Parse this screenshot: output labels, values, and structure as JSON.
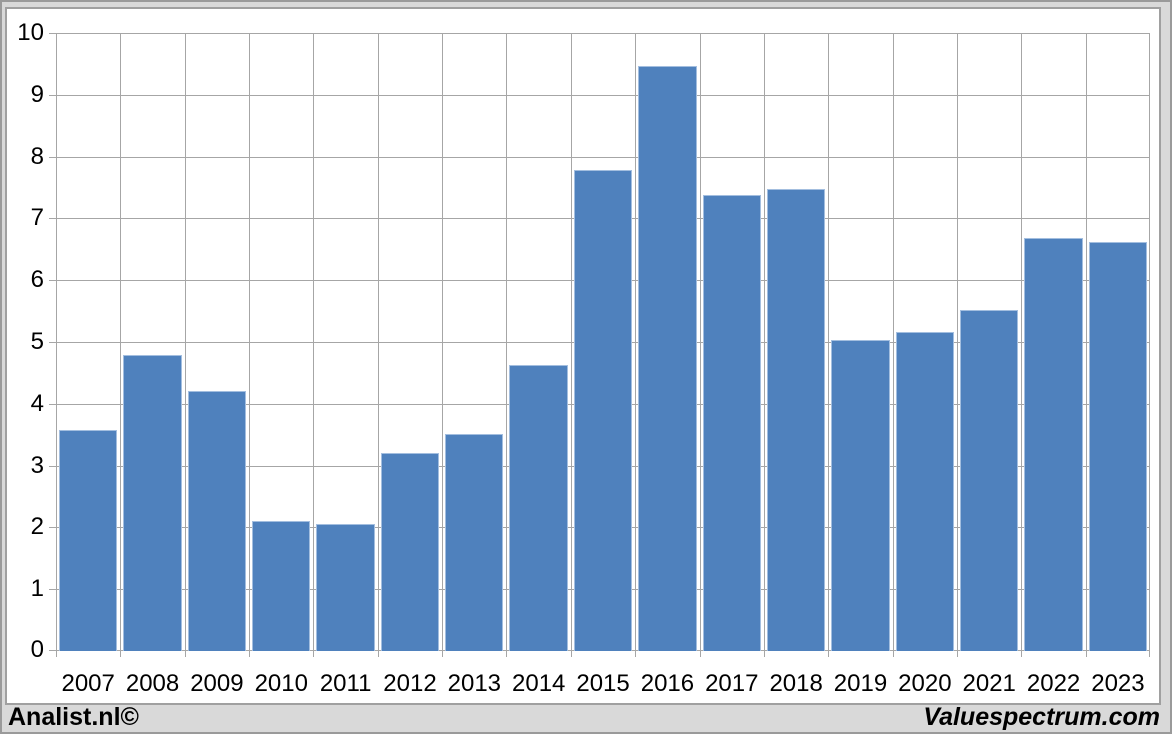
{
  "chart_data": {
    "type": "bar",
    "categories": [
      "2007",
      "2008",
      "2009",
      "2010",
      "2011",
      "2012",
      "2013",
      "2014",
      "2015",
      "2016",
      "2017",
      "2018",
      "2019",
      "2020",
      "2021",
      "2022",
      "2023"
    ],
    "values": [
      3.58,
      4.79,
      4.2,
      2.1,
      2.06,
      3.21,
      3.51,
      4.63,
      7.79,
      9.47,
      7.38,
      7.48,
      5.04,
      5.17,
      5.51,
      6.68,
      6.62
    ],
    "title": "",
    "xlabel": "",
    "ylabel": "",
    "ylim": [
      0,
      10
    ],
    "yticks": [
      0,
      1,
      2,
      3,
      4,
      5,
      6,
      7,
      8,
      9,
      10
    ],
    "grid": true,
    "legend": false,
    "bar_color": "#4f81bd",
    "bar_border_color": "#a3bedf",
    "gridline_color": "#a6a6a6",
    "axis_color": "#a6a6a6",
    "plot_background": "#ffffff",
    "frame_background": "#d9d9d9"
  },
  "footer": {
    "left_text": "Analist.nl©",
    "right_text": "Valuespectrum.com"
  }
}
